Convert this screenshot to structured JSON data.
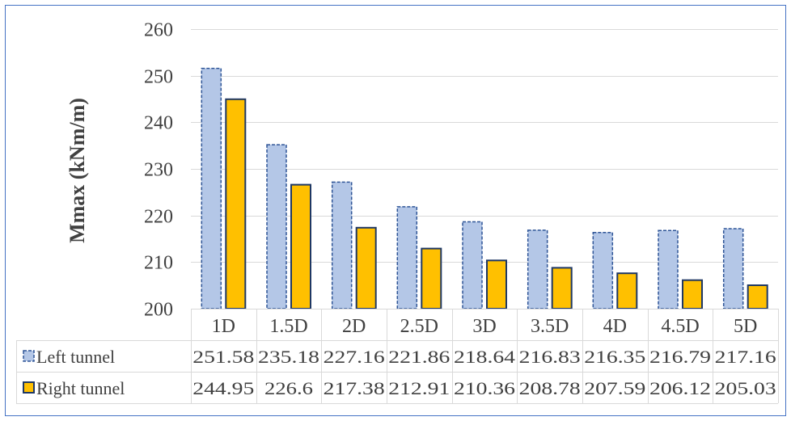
{
  "chart_data": {
    "type": "bar",
    "ylabel": "Mmax (kNm/m)",
    "ylim": [
      200,
      260
    ],
    "yticks": [
      200,
      210,
      220,
      230,
      240,
      250,
      260
    ],
    "categories": [
      "1D",
      "1.5D",
      "2D",
      "2.5D",
      "3D",
      "3.5D",
      "4D",
      "4.5D",
      "5D"
    ],
    "series": [
      {
        "name": "Left tunnel",
        "values": [
          251.58,
          235.18,
          227.16,
          221.86,
          218.64,
          216.83,
          216.35,
          216.79,
          217.16
        ],
        "labels": [
          "251.58",
          "235.18",
          "227.16",
          "221.86",
          "218.64",
          "216.83",
          "216.35",
          "216.79",
          "217.16"
        ],
        "color": "#b4c7e7",
        "border": "#2f5597",
        "border_style": "dashed"
      },
      {
        "name": "Right tunnel",
        "values": [
          244.95,
          226.6,
          217.38,
          212.91,
          210.36,
          208.78,
          207.59,
          206.12,
          205.03
        ],
        "labels": [
          "244.95",
          "226.6",
          "217.38",
          "212.91",
          "210.36",
          "208.78",
          "207.59",
          "206.12",
          "205.03"
        ],
        "color": "#ffc000",
        "border": "#1f3864",
        "border_style": "solid"
      }
    ],
    "grid": true,
    "legend": "data-table"
  }
}
